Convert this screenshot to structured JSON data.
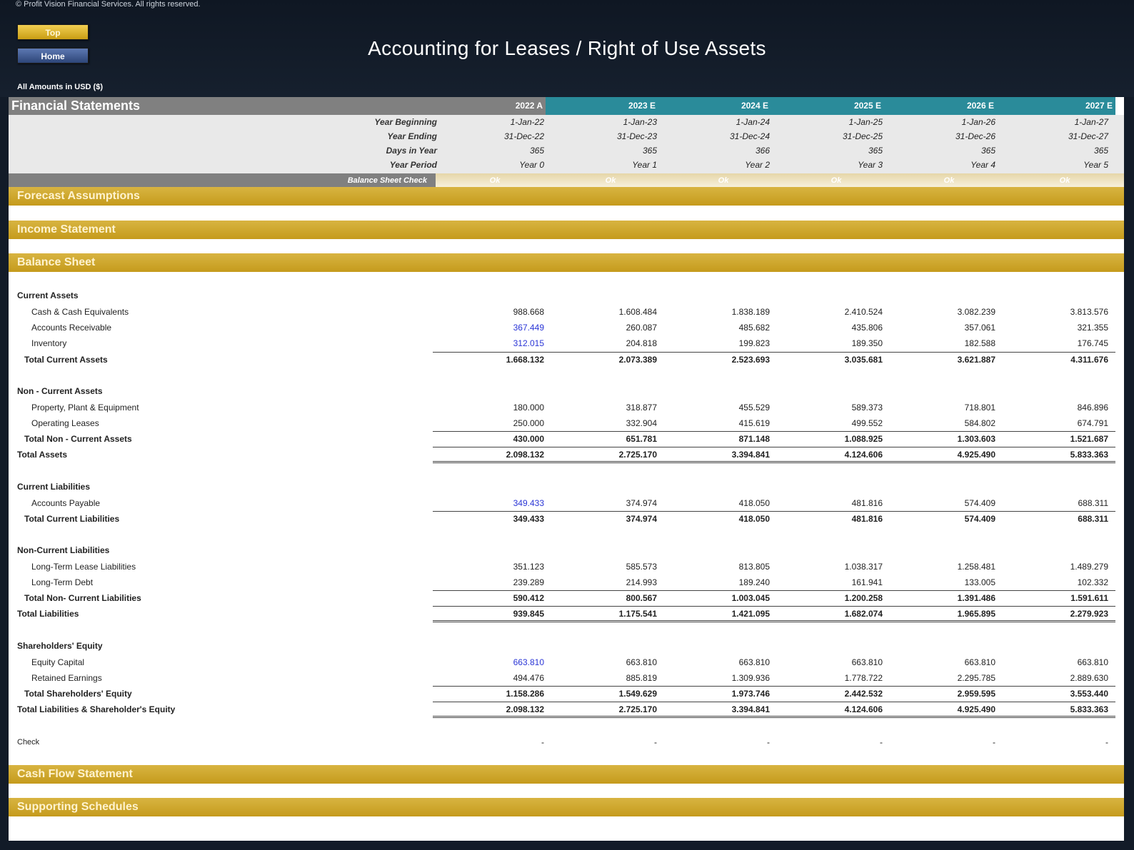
{
  "copyright": "© Profit Vision Financial Services. All rights reserved.",
  "nav": {
    "top_label": "Top",
    "home_label": "Home"
  },
  "title": "Accounting for Leases / Right of Use Assets",
  "amounts_note": "All Amounts in USD ($)",
  "colors": {
    "actual_header": "#808080",
    "estimate_header": "#2a8b9a",
    "section_bar": "#c9a227",
    "input_value": "#2a35d6"
  },
  "financial_statements": {
    "label": "Financial Statements",
    "years": [
      "2022 A",
      "2023 E",
      "2024 E",
      "2025 E",
      "2026 E",
      "2027 E"
    ],
    "meta": [
      {
        "label": "Year Beginning",
        "values": [
          "1-Jan-22",
          "1-Jan-23",
          "1-Jan-24",
          "1-Jan-25",
          "1-Jan-26",
          "1-Jan-27"
        ]
      },
      {
        "label": "Year Ending",
        "values": [
          "31-Dec-22",
          "31-Dec-23",
          "31-Dec-24",
          "31-Dec-25",
          "31-Dec-26",
          "31-Dec-27"
        ]
      },
      {
        "label": "Days in Year",
        "values": [
          "365",
          "365",
          "366",
          "365",
          "365",
          "365"
        ]
      },
      {
        "label": "Year Period",
        "values": [
          "Year 0",
          "Year 1",
          "Year 2",
          "Year 3",
          "Year 4",
          "Year 5"
        ]
      }
    ],
    "balance_check": {
      "label": "Balance Sheet Check",
      "values": [
        "Ok",
        "Ok",
        "Ok",
        "Ok",
        "Ok",
        "Ok"
      ]
    }
  },
  "sections": {
    "forecast_assumptions": "Forecast Assumptions",
    "income_statement": "Income Statement",
    "balance_sheet": "Balance Sheet",
    "cash_flow_statement": "Cash Flow Statement",
    "supporting_schedules": "Supporting Schedules"
  },
  "balance_sheet": {
    "current_assets_head": "Current Assets",
    "cash": {
      "label": "Cash & Cash Equivalents",
      "values": [
        "988.668",
        "1.608.484",
        "1.838.189",
        "2.410.524",
        "3.082.239",
        "3.813.576"
      ]
    },
    "receivable": {
      "label": "Accounts Receivable",
      "values": [
        "367.449",
        "260.087",
        "485.682",
        "435.806",
        "357.061",
        "321.355"
      ]
    },
    "inventory": {
      "label": "Inventory",
      "values": [
        "312.015",
        "204.818",
        "199.823",
        "189.350",
        "182.588",
        "176.745"
      ]
    },
    "total_current_assets": {
      "label": "Total Current Assets",
      "values": [
        "1.668.132",
        "2.073.389",
        "2.523.693",
        "3.035.681",
        "3.621.887",
        "4.311.676"
      ]
    },
    "non_current_assets_head": "Non - Current Assets",
    "ppe": {
      "label": "Property, Plant & Equipment",
      "values": [
        "180.000",
        "318.877",
        "455.529",
        "589.373",
        "718.801",
        "846.896"
      ]
    },
    "operating_leases": {
      "label": "Operating Leases",
      "values": [
        "250.000",
        "332.904",
        "415.619",
        "499.552",
        "584.802",
        "674.791"
      ]
    },
    "total_non_current_assets": {
      "label": "Total Non - Current Assets",
      "values": [
        "430.000",
        "651.781",
        "871.148",
        "1.088.925",
        "1.303.603",
        "1.521.687"
      ]
    },
    "total_assets": {
      "label": "Total Assets",
      "values": [
        "2.098.132",
        "2.725.170",
        "3.394.841",
        "4.124.606",
        "4.925.490",
        "5.833.363"
      ]
    },
    "current_liabilities_head": "Current Liabilities",
    "payable": {
      "label": "Accounts Payable",
      "values": [
        "349.433",
        "374.974",
        "418.050",
        "481.816",
        "574.409",
        "688.311"
      ]
    },
    "total_current_liabilities": {
      "label": "Total Current Liabilities",
      "values": [
        "349.433",
        "374.974",
        "418.050",
        "481.816",
        "574.409",
        "688.311"
      ]
    },
    "non_current_liabilities_head": "Non-Current Liabilities",
    "lease_liabilities": {
      "label": "Long-Term Lease Liabilities",
      "values": [
        "351.123",
        "585.573",
        "813.805",
        "1.038.317",
        "1.258.481",
        "1.489.279"
      ]
    },
    "long_term_debt": {
      "label": "Long-Term Debt",
      "values": [
        "239.289",
        "214.993",
        "189.240",
        "161.941",
        "133.005",
        "102.332"
      ]
    },
    "total_non_current_liabilities": {
      "label": "Total Non- Current Liabilities",
      "values": [
        "590.412",
        "800.567",
        "1.003.045",
        "1.200.258",
        "1.391.486",
        "1.591.611"
      ]
    },
    "total_liabilities": {
      "label": "Total Liabilities",
      "values": [
        "939.845",
        "1.175.541",
        "1.421.095",
        "1.682.074",
        "1.965.895",
        "2.279.923"
      ]
    },
    "equity_head": "Shareholders' Equity",
    "equity_capital": {
      "label": "Equity Capital",
      "values": [
        "663.810",
        "663.810",
        "663.810",
        "663.810",
        "663.810",
        "663.810"
      ]
    },
    "retained_earnings": {
      "label": "Retained Earnings",
      "values": [
        "494.476",
        "885.819",
        "1.309.936",
        "1.778.722",
        "2.295.785",
        "2.889.630"
      ]
    },
    "total_equity": {
      "label": "Total Shareholders' Equity",
      "values": [
        "1.158.286",
        "1.549.629",
        "1.973.746",
        "2.442.532",
        "2.959.595",
        "3.553.440"
      ]
    },
    "total_liabilities_equity": {
      "label": "Total Liabilities & Shareholder's Equity",
      "values": [
        "2.098.132",
        "2.725.170",
        "3.394.841",
        "4.124.606",
        "4.925.490",
        "5.833.363"
      ]
    },
    "check": {
      "label": "Check",
      "values": [
        "-",
        "-",
        "-",
        "-",
        "-",
        "-"
      ]
    }
  }
}
